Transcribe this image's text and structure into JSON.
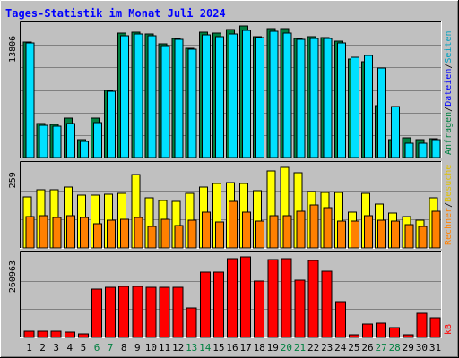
{
  "chart_data": [
    {
      "type": "bar",
      "title": "Tages-Statistik im Monat Juli 2024",
      "categories": [
        "1",
        "2",
        "3",
        "4",
        "5",
        "6",
        "7",
        "8",
        "9",
        "10",
        "11",
        "12",
        "13",
        "14",
        "15",
        "16",
        "17",
        "18",
        "19",
        "20",
        "21",
        "22",
        "23",
        "24",
        "25",
        "26",
        "27",
        "28",
        "29",
        "30",
        "31"
      ],
      "weekend_days": [
        "6",
        "7",
        "13",
        "14",
        "20",
        "21",
        "27",
        "28"
      ],
      "ylim": [
        0,
        15200
      ],
      "ytick": {
        "value": 13806,
        "label": "13806"
      },
      "side_label": {
        "parts": [
          "Anfragen",
          "/",
          "Dateien",
          "/",
          "Seiten"
        ]
      },
      "series": [
        {
          "name": "Anfragen",
          "color": "#008040",
          "values": [
            13000,
            3800,
            3700,
            4400,
            2000,
            4400,
            7600,
            14000,
            14100,
            13900,
            12800,
            13400,
            12300,
            14100,
            14000,
            14400,
            14800,
            13600,
            14500,
            14500,
            13400,
            13600,
            13500,
            13100,
            11100,
            10800,
            5800,
            2000,
            2200,
            2000,
            2100
          ]
        },
        {
          "name": "Dateien",
          "color": "#00e0ff",
          "values": [
            12900,
            3600,
            3500,
            3800,
            1800,
            3900,
            7400,
            13700,
            13900,
            13700,
            12600,
            13300,
            12200,
            13800,
            13600,
            13900,
            14300,
            13500,
            14200,
            14000,
            13300,
            13400,
            13400,
            12900,
            11300,
            11500,
            10100,
            5700,
            1600,
            1600,
            2000
          ]
        }
      ]
    },
    {
      "type": "bar",
      "categories": [
        "1",
        "2",
        "3",
        "4",
        "5",
        "6",
        "7",
        "8",
        "9",
        "10",
        "11",
        "12",
        "13",
        "14",
        "15",
        "16",
        "17",
        "18",
        "19",
        "20",
        "21",
        "22",
        "23",
        "24",
        "25",
        "26",
        "27",
        "28",
        "29",
        "30",
        "31"
      ],
      "ylim": [
        0,
        290
      ],
      "ytick": {
        "value": 259,
        "label": "259"
      },
      "side_label": {
        "parts": [
          "Rechner",
          "/",
          "Besuche"
        ]
      },
      "series": [
        {
          "name": "Besuche",
          "color": "#ffff00",
          "values": [
            172,
            196,
            197,
            204,
            178,
            178,
            180,
            184,
            249,
            168,
            159,
            157,
            183,
            204,
            217,
            220,
            219,
            194,
            260,
            273,
            254,
            190,
            188,
            188,
            122,
            183,
            147,
            118,
            107,
            95,
            168
          ]
        },
        {
          "name": "Rechner",
          "color": "#ff8000",
          "values": [
            106,
            110,
            102,
            108,
            104,
            83,
            93,
            96,
            103,
            71,
            98,
            75,
            95,
            120,
            88,
            156,
            120,
            92,
            108,
            110,
            124,
            145,
            136,
            91,
            91,
            110,
            95,
            90,
            80,
            73,
            123
          ]
        }
      ]
    },
    {
      "type": "bar",
      "categories": [
        "1",
        "2",
        "3",
        "4",
        "5",
        "6",
        "7",
        "8",
        "9",
        "10",
        "11",
        "12",
        "13",
        "14",
        "15",
        "16",
        "17",
        "18",
        "19",
        "20",
        "21",
        "22",
        "23",
        "24",
        "25",
        "26",
        "27",
        "28",
        "29",
        "30",
        "31"
      ],
      "ylim": [
        0,
        285000
      ],
      "ytick": {
        "value": 260963,
        "label": "260963"
      },
      "side_label": {
        "parts": [
          "kB"
        ]
      },
      "series": [
        {
          "name": "kB",
          "color": "#ff0000",
          "values": [
            20000,
            22000,
            20000,
            18000,
            12000,
            161000,
            167000,
            170000,
            170000,
            167000,
            167000,
            167000,
            99000,
            218000,
            218000,
            265000,
            270000,
            190000,
            260000,
            263000,
            192000,
            258000,
            221000,
            120000,
            10000,
            45000,
            48000,
            32000,
            10000,
            80000,
            65000
          ]
        }
      ]
    }
  ]
}
